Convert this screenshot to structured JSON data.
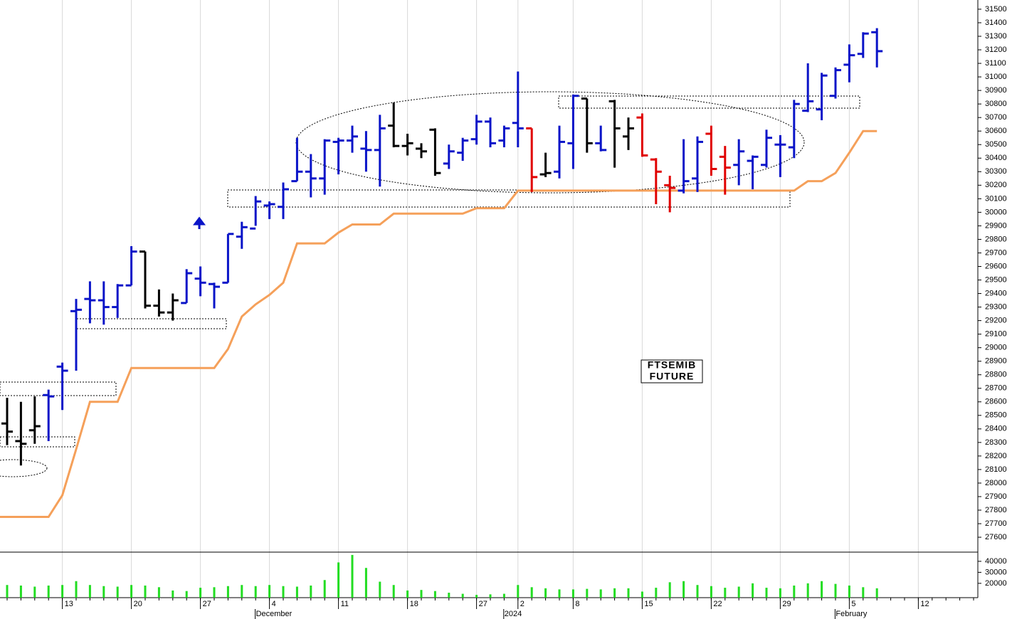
{
  "chart_data": [
    {
      "type": "ohlc",
      "annotations": [
        "FTSEMIB",
        "FUTURE"
      ],
      "categories": [
        null,
        null,
        null,
        null,
        "13",
        null,
        null,
        null,
        null,
        "20",
        null,
        null,
        null,
        null,
        "27",
        null,
        null,
        null,
        null,
        "4",
        null,
        null,
        null,
        null,
        "11",
        null,
        null,
        null,
        null,
        "18",
        null,
        null,
        null,
        null,
        "27",
        null,
        null,
        "2",
        null,
        null,
        null,
        "8",
        null,
        null,
        null,
        null,
        "15",
        null,
        null,
        null,
        null,
        "22",
        null,
        null,
        null,
        null,
        "29",
        null,
        null,
        null,
        null,
        "5",
        null,
        null,
        null,
        null,
        "12",
        null,
        null,
        null,
        null
      ],
      "category_period": [
        null,
        null,
        null,
        null,
        null,
        null,
        null,
        null,
        null,
        null,
        null,
        null,
        null,
        null,
        null,
        null,
        null,
        null,
        null,
        "December",
        null,
        null,
        null,
        null,
        null,
        null,
        null,
        null,
        null,
        null,
        null,
        null,
        null,
        null,
        null,
        null,
        null,
        "2024",
        null,
        null,
        null,
        null,
        null,
        null,
        null,
        null,
        null,
        null,
        null,
        null,
        null,
        null,
        null,
        null,
        null,
        null,
        null,
        null,
        null,
        null,
        null,
        "February",
        null,
        null,
        null,
        null,
        null,
        null,
        null,
        null,
        null
      ],
      "open": [
        28440,
        28310,
        28390,
        28650,
        28860,
        29270,
        29360,
        29350,
        29300,
        29460,
        29710,
        29310,
        29260,
        29330,
        29510,
        29470,
        29480,
        29820,
        29880,
        30050,
        30040,
        30230,
        30300,
        30250,
        30520,
        30530,
        30470,
        30460,
        30640,
        30490,
        30470,
        30610,
        30360,
        30440,
        30540,
        30670,
        30530,
        30660,
        30620,
        30280,
        30300,
        30510,
        30840,
        30510,
        30820,
        30560,
        30700,
        30390,
        30200,
        30160,
        30250,
        30580,
        30410,
        30350,
        30380,
        30350,
        30500,
        30480,
        30750,
        30760,
        30860,
        31090,
        31170,
        31330,
        null,
        null,
        null,
        null,
        null,
        null,
        null
      ],
      "high": [
        28630,
        28600,
        28640,
        28690,
        28890,
        29360,
        29490,
        29490,
        29470,
        29750,
        29710,
        29430,
        29400,
        29580,
        29600,
        29480,
        29840,
        29930,
        30120,
        30080,
        30220,
        30550,
        30430,
        30540,
        30550,
        30640,
        30600,
        30720,
        30810,
        30580,
        30510,
        30620,
        30500,
        30550,
        30720,
        30700,
        30640,
        31040,
        30620,
        30440,
        30640,
        30870,
        30840,
        30640,
        30830,
        30700,
        30730,
        30400,
        30270,
        30540,
        30560,
        30640,
        30490,
        30540,
        30420,
        30610,
        30570,
        30830,
        31100,
        31030,
        31070,
        31240,
        31330,
        31360,
        null,
        null,
        null,
        null,
        null,
        null,
        null
      ],
      "low": [
        28280,
        28130,
        28290,
        28310,
        28540,
        28830,
        29180,
        29170,
        29220,
        29460,
        29290,
        29230,
        29200,
        29330,
        29380,
        29290,
        29480,
        29730,
        29900,
        29950,
        29950,
        30230,
        30110,
        30130,
        30280,
        30440,
        30300,
        30190,
        30480,
        30420,
        30400,
        30270,
        30320,
        30380,
        30500,
        30480,
        30480,
        30480,
        30150,
        30260,
        30250,
        30320,
        30440,
        30450,
        30330,
        30460,
        30410,
        30060,
        30000,
        30140,
        30150,
        30270,
        30130,
        30200,
        30170,
        30330,
        30260,
        30400,
        30740,
        30680,
        30840,
        30960,
        31140,
        31070,
        null,
        null,
        null,
        null,
        null,
        null,
        null
      ],
      "close": [
        28380,
        28290,
        28420,
        28640,
        28830,
        29280,
        29350,
        29300,
        29460,
        29710,
        29310,
        29260,
        29350,
        29550,
        29480,
        29450,
        29840,
        29890,
        30080,
        30060,
        30170,
        30300,
        30250,
        30530,
        30530,
        30560,
        30460,
        30620,
        30490,
        30510,
        30450,
        30290,
        30450,
        30530,
        30670,
        30510,
        30620,
        30620,
        30260,
        30290,
        30520,
        30860,
        30510,
        30460,
        30620,
        30620,
        30420,
        30300,
        30180,
        30230,
        30520,
        30320,
        30330,
        30450,
        30410,
        30550,
        30500,
        30800,
        30820,
        31010,
        31050,
        31160,
        31320,
        31190,
        null,
        null,
        null,
        null,
        null,
        null,
        null
      ],
      "bar_colors": [
        "#000000",
        "#000000",
        "#000000",
        "#0a14c8",
        "#0a14c8",
        "#0a14c8",
        "#0a14c8",
        "#0a14c8",
        "#0a14c8",
        "#0a14c8",
        "#000000",
        "#000000",
        "#000000",
        "#0a14c8",
        "#0a14c8",
        "#0a14c8",
        "#0a14c8",
        "#0a14c8",
        "#0a14c8",
        "#0a14c8",
        "#0a14c8",
        "#0a14c8",
        "#0a14c8",
        "#0a14c8",
        "#0a14c8",
        "#0a14c8",
        "#0a14c8",
        "#0a14c8",
        "#000000",
        "#000000",
        "#000000",
        "#000000",
        "#0a14c8",
        "#0a14c8",
        "#0a14c8",
        "#0a14c8",
        "#0a14c8",
        "#0a14c8",
        "#e00000",
        "#000000",
        "#0a14c8",
        "#0a14c8",
        "#000000",
        "#0a14c8",
        "#000000",
        "#000000",
        "#e00000",
        "#e00000",
        "#e00000",
        "#0a14c8",
        "#0a14c8",
        "#e00000",
        "#e00000",
        "#0a14c8",
        "#0a14c8",
        "#0a14c8",
        "#0a14c8",
        "#0a14c8",
        "#0a14c8",
        "#0a14c8",
        "#0a14c8",
        "#0a14c8",
        "#0a14c8",
        "#0a14c8",
        null,
        null,
        null,
        null,
        null,
        null,
        null
      ],
      "lines": [
        {
          "color": "#f5a05a",
          "values": [
            27750,
            27750,
            27750,
            27750,
            27910,
            28250,
            28600,
            28600,
            28600,
            28850,
            28850,
            28850,
            28850,
            28850,
            28850,
            28850,
            28990,
            29230,
            29320,
            29390,
            29480,
            29770,
            29770,
            29770,
            29850,
            29910,
            29910,
            29910,
            29990,
            29990,
            29990,
            29990,
            29990,
            29990,
            30030,
            30030,
            30030,
            30160,
            30160,
            30160,
            30160,
            30160,
            30160,
            30160,
            30160,
            30160,
            30160,
            30160,
            30160,
            30160,
            30160,
            30160,
            30160,
            30160,
            30160,
            30160,
            30160,
            30160,
            30230,
            30230,
            30290,
            30440,
            30600,
            30600,
            null,
            null,
            null,
            null,
            null,
            null,
            null
          ]
        }
      ],
      "ylim": [
        27490,
        31568
      ],
      "yticks": [
        27600,
        27700,
        27800,
        27900,
        28000,
        28100,
        28200,
        28300,
        28400,
        28500,
        28600,
        28700,
        28800,
        28900,
        29000,
        29100,
        29200,
        29300,
        29400,
        29500,
        29600,
        29700,
        29800,
        29900,
        30000,
        30100,
        30200,
        30300,
        30400,
        30500,
        30600,
        30700,
        30800,
        30900,
        31000,
        31100,
        31200,
        31300,
        31400,
        31500
      ]
    },
    {
      "type": "bar",
      "color": "#22dd22",
      "values": [
        18500,
        18000,
        17000,
        18000,
        18500,
        22000,
        18500,
        17500,
        17000,
        18500,
        18000,
        16500,
        13500,
        13000,
        16000,
        16500,
        17500,
        18500,
        17500,
        18500,
        17500,
        17000,
        18000,
        23000,
        39000,
        45800,
        34000,
        21500,
        18500,
        13500,
        14000,
        13000,
        11500,
        10500,
        9500,
        10000,
        10500,
        18500,
        16500,
        15500,
        14500,
        14500,
        15000,
        14500,
        15500,
        15500,
        12500,
        16000,
        21000,
        22000,
        18500,
        17500,
        16000,
        17000,
        20000,
        16000,
        15500,
        18000,
        20000,
        22000,
        19500,
        18000,
        16500,
        15500,
        null,
        null,
        null,
        null,
        null,
        null,
        null
      ],
      "ylim": [
        7000,
        47700
      ],
      "yticks": [
        20000,
        30000,
        40000
      ]
    }
  ]
}
